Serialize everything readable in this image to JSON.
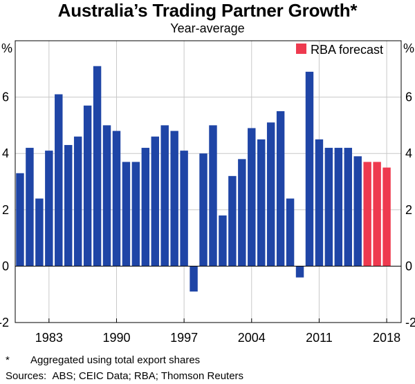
{
  "title": "Australia’s Trading Partner Growth*",
  "subtitle": "Year-average",
  "legend": {
    "label": "RBA forecast",
    "color": "#ee3a4f"
  },
  "footnotes": {
    "marker": "*",
    "note": "Aggregated using total export shares",
    "sources_label": "Sources:",
    "sources": "ABS; CEIC Data; RBA; Thomson Reuters"
  },
  "chart_data": {
    "type": "bar",
    "ylabel_left": "%",
    "ylabel_right": "%",
    "ylim": [
      -2,
      8
    ],
    "yticks": [
      -2,
      0,
      2,
      4,
      6
    ],
    "xtick_labels": [
      "1983",
      "1990",
      "1997",
      "2004",
      "2011",
      "2018"
    ],
    "xtick_years": [
      1983,
      1990,
      1997,
      2004,
      2011,
      2018
    ],
    "x_range": [
      1980,
      2019
    ],
    "grid": true,
    "bar_color": "#1f45a6",
    "forecast_color": "#ee3a4f",
    "years": [
      1980,
      1981,
      1982,
      1983,
      1984,
      1985,
      1986,
      1987,
      1988,
      1989,
      1990,
      1991,
      1992,
      1993,
      1994,
      1995,
      1996,
      1997,
      1998,
      1999,
      2000,
      2001,
      2002,
      2003,
      2004,
      2005,
      2006,
      2007,
      2008,
      2009,
      2010,
      2011,
      2012,
      2013,
      2014,
      2015,
      2016,
      2017,
      2018
    ],
    "values": [
      3.3,
      4.2,
      2.4,
      4.1,
      6.1,
      4.3,
      4.6,
      5.7,
      7.1,
      5.0,
      4.8,
      3.7,
      3.7,
      4.2,
      4.6,
      5.0,
      4.8,
      4.1,
      -0.9,
      4.0,
      5.0,
      1.8,
      3.2,
      3.8,
      4.9,
      4.5,
      5.1,
      5.5,
      2.4,
      -0.4,
      6.9,
      4.5,
      4.2,
      4.2,
      4.2,
      3.9,
      3.7,
      3.7,
      3.5
    ],
    "forecast_from": 2016
  }
}
